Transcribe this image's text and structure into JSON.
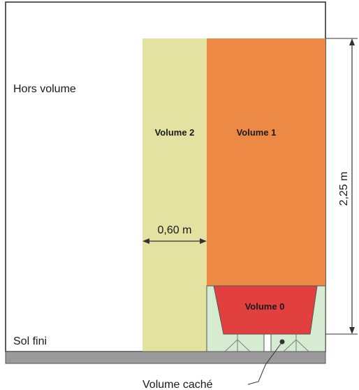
{
  "labels": {
    "hors_volume": "Hors volume",
    "volume_2": "Volume 2",
    "volume_1": "Volume 1",
    "volume_0": "Volume 0",
    "sol_fini": "Sol fini",
    "volume_cache": "Volume caché"
  },
  "dimensions": {
    "width_volume_2": "0,60 m",
    "height_volume_1": "2,25 m"
  },
  "colors": {
    "volume_2": "#e3e2a0",
    "volume_1": "#ec8a45",
    "volume_0": "#e2403e",
    "volume_cache": "#d6ecd2",
    "floor": "#9a9a9a",
    "outline": "#333333"
  }
}
